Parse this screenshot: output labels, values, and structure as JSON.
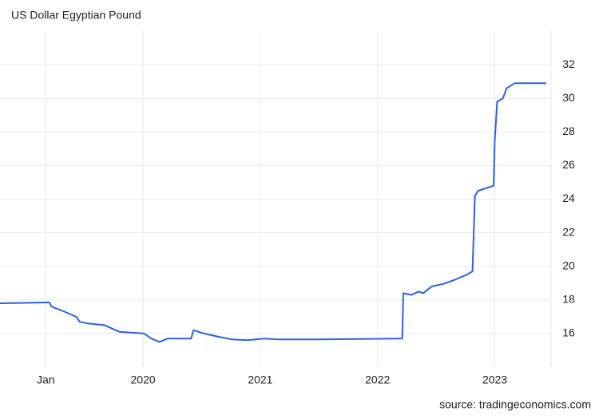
{
  "chart_data": {
    "type": "line",
    "title": "US Dollar Egyptian Pound",
    "source": "source: tradingeconomics.com",
    "series": [
      {
        "name": "US Dollar Egyptian Pound",
        "color": "#2b63dc",
        "x": [
          2018.78,
          2019.17,
          2019.2,
          2019.22,
          2019.33,
          2019.43,
          2019.46,
          2019.53,
          2019.67,
          2019.8,
          2020.01,
          2020.07,
          2020.14,
          2020.21,
          2020.38,
          2020.41,
          2020.43,
          2020.52,
          2020.65,
          2020.76,
          2020.89,
          2021.03,
          2021.16,
          2021.5,
          2022.18,
          2022.21,
          2022.22,
          2022.29,
          2022.35,
          2022.39,
          2022.46,
          2022.56,
          2022.66,
          2022.76,
          2022.81,
          2022.83,
          2022.86,
          2022.99,
          2023.0,
          2023.02,
          2023.07,
          2023.1,
          2023.17,
          2023.27,
          2023.44
        ],
        "values": [
          17.8,
          17.85,
          17.85,
          17.6,
          17.3,
          17.0,
          16.7,
          16.6,
          16.5,
          16.1,
          16.0,
          15.7,
          15.5,
          15.7,
          15.7,
          15.7,
          16.2,
          16.0,
          15.8,
          15.65,
          15.6,
          15.7,
          15.65,
          15.65,
          15.7,
          15.7,
          18.4,
          18.3,
          18.5,
          18.4,
          18.8,
          18.95,
          19.2,
          19.5,
          19.7,
          24.2,
          24.5,
          24.8,
          27.5,
          29.8,
          30.0,
          30.6,
          30.9,
          30.9,
          30.9
        ]
      }
    ],
    "xlim": [
      2018.78,
      2023.48
    ],
    "xticks": [
      {
        "value": 2019.17,
        "label": "Jan"
      },
      2020,
      2021,
      2022,
      2023
    ],
    "ylim": [
      14,
      34
    ],
    "yticks": [
      16,
      18,
      20,
      22,
      24,
      26,
      28,
      30,
      32
    ],
    "grid": true
  }
}
